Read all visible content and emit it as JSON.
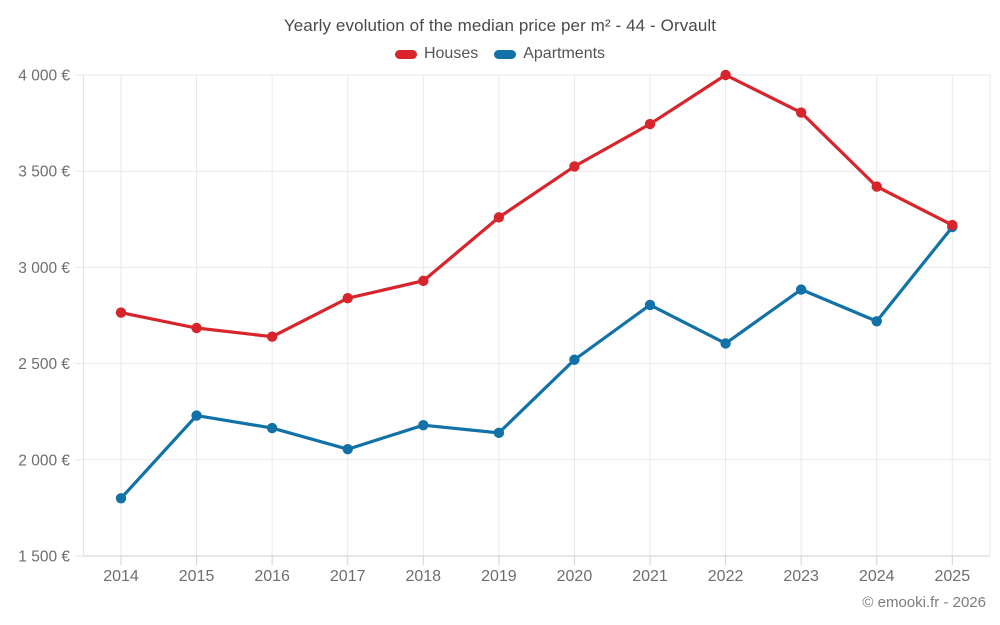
{
  "footer": {
    "credit": "© emooki.fr - 2026"
  },
  "chart_data": {
    "type": "line",
    "title": "Yearly evolution of the median price per m² - 44 - Orvault",
    "xlabel": "",
    "ylabel": "",
    "x": [
      "2014",
      "2015",
      "2016",
      "2017",
      "2018",
      "2019",
      "2020",
      "2021",
      "2022",
      "2023",
      "2024",
      "2025"
    ],
    "series": [
      {
        "name": "Houses",
        "color": "#d8252c",
        "values": [
          2765,
          2685,
          2640,
          2840,
          2930,
          3260,
          3525,
          3745,
          4000,
          3805,
          3420,
          3220
        ]
      },
      {
        "name": "Apartments",
        "color": "#1272a8",
        "values": [
          1800,
          2230,
          2165,
          2055,
          2180,
          2140,
          2520,
          2805,
          2605,
          2885,
          2720,
          3210
        ]
      }
    ],
    "ylim": [
      1500,
      4000
    ],
    "ytick_step": 500,
    "ytick_labels": [
      "1 500 €",
      "2 000 €",
      "2 500 €",
      "3 000 €",
      "3 500 €",
      "4 000 €"
    ],
    "grid": true,
    "legend_position": "top",
    "currency_suffix": " €"
  }
}
